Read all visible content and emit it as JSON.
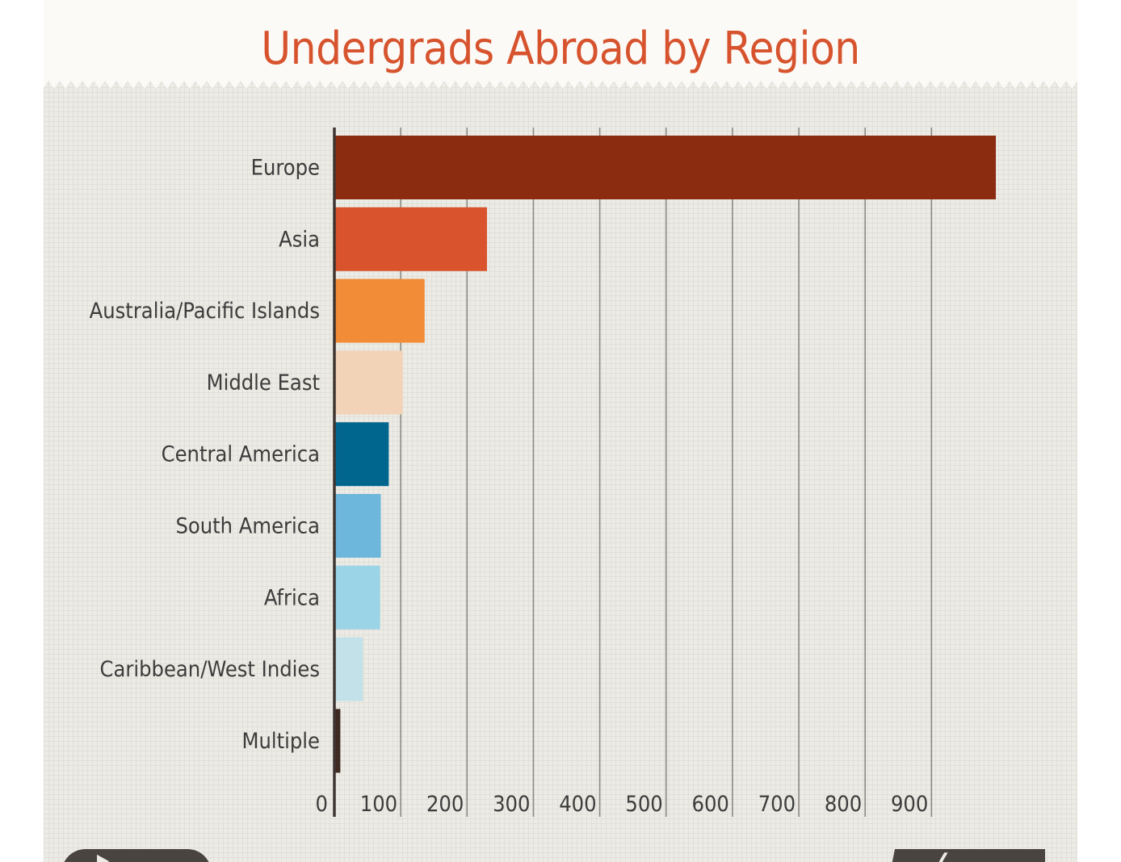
{
  "chart_data": {
    "type": "bar",
    "orientation": "horizontal",
    "title": "Undergrads Abroad by Region",
    "xlabel": "",
    "ylabel": "",
    "categories": [
      "Europe",
      "Asia",
      "Australia/Pacific Islands",
      "Middle East",
      "Central America",
      "South America",
      "Africa",
      "Caribbean/West Indies",
      "Multiple"
    ],
    "values": [
      997,
      230,
      136,
      103,
      82,
      70,
      69,
      43,
      9
    ],
    "colors": [
      "#8b2b10",
      "#d9532c",
      "#f28c36",
      "#f2d3b8",
      "#00668e",
      "#6db7dc",
      "#9cd4e7",
      "#c2e1e9",
      "#3f2a22"
    ],
    "xlim": [
      0,
      1000
    ],
    "xticks": [
      "0",
      "100",
      "200",
      "300",
      "400",
      "500",
      "600",
      "700",
      "800",
      "900"
    ],
    "grid": true
  },
  "nav": {
    "prev_icon": "play-arrow-right",
    "next_icon": "arrow-left"
  }
}
